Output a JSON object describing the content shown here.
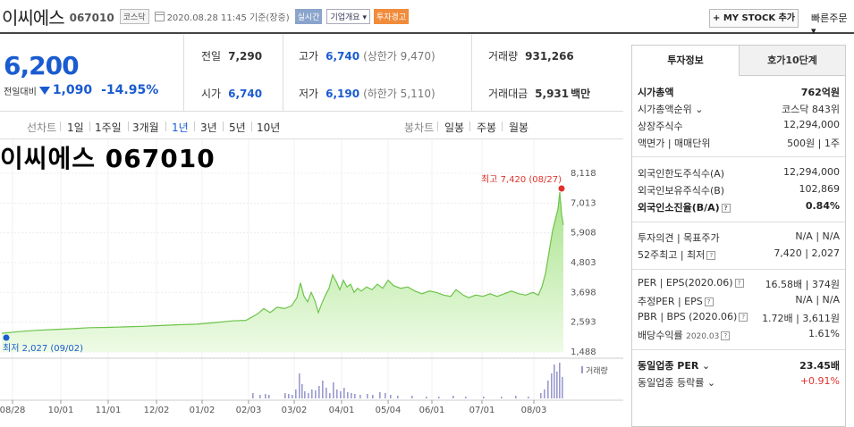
{
  "header": {
    "name": "이씨에스",
    "code": "067010",
    "market": "코스닥",
    "datetime": "2020.08.28 11:45",
    "status": "기준(장중)",
    "realtime": "실시간",
    "company_info": "기업개요",
    "warning": "투자경고",
    "mystock_label": "+ MY STOCK 추가",
    "quick_order": "빠른주문"
  },
  "price": {
    "current": "6,200",
    "change_label": "전일대비",
    "change": "1,090",
    "change_pct": "-14.95%",
    "prev_close_label": "전일",
    "prev_close": "7,290",
    "open_label": "시가",
    "open": "6,740",
    "high_label": "고가",
    "high": "6,740",
    "upper_limit_label": "(상한가 9,470)",
    "low_label": "저가",
    "low": "6,190",
    "lower_limit_label": "(하한가 5,110)",
    "volume_label": "거래량",
    "volume": "931,266",
    "amount_label": "거래대금",
    "amount": "5,931",
    "amount_unit": "백만"
  },
  "period": {
    "line_label": "선차트",
    "line_items": [
      "1일",
      "1주일",
      "3개월",
      "1년",
      "3년",
      "5년",
      "10년"
    ],
    "selected": "1년",
    "candle_label": "봉차트",
    "candle_items": [
      "일봉",
      "주봉",
      "월봉"
    ]
  },
  "chart_data": {
    "type": "area",
    "title": "이씨에스 067010",
    "y_ticks": [
      "8,118",
      "7,013",
      "5,908",
      "4,803",
      "3,698",
      "2,593",
      "1,488"
    ],
    "ylim": [
      1488,
      8118
    ],
    "x_ticks": [
      "08/28",
      "10/01",
      "11/01",
      "12/02",
      "01/02",
      "02/03",
      "03/02",
      "04/01",
      "05/04",
      "06/01",
      "07/01",
      "08/03"
    ],
    "high_label": "최고 7,420 (08/27)",
    "low_label": "최저 2,027 (09/02)",
    "volume_label": "거래량",
    "grid": true,
    "color": "#8fd870"
  },
  "invest": {
    "tab_active": "투자정보",
    "tab_inactive": "호가10단계",
    "market_cap_label": "시가총액",
    "market_cap": "762억원",
    "market_cap_rank_label": "시가총액순위",
    "market_cap_rank": "코스닥 843위",
    "shares_label": "상장주식수",
    "shares": "12,294,000",
    "par_label": "액면가 | 매매단위",
    "par": "500원 | 1주",
    "foreign_limit_label": "외국인한도주식수(A)",
    "foreign_limit": "12,294,000",
    "foreign_hold_label": "외국인보유주식수(B)",
    "foreign_hold": "102,869",
    "foreign_ratio_label": "외국인소진율(B/A)",
    "foreign_ratio": "0.84%",
    "opinion_label": "투자의견 | 목표주가",
    "opinion": "N/A | N/A",
    "w52_label": "52주최고 | 최저",
    "w52": "7,420 | 2,027",
    "per_label": "PER | EPS(2020.06)",
    "per": "16.58배 | 374원",
    "est_per_label": "추정PER | EPS",
    "est_per": "N/A | N/A",
    "pbr_label": "PBR | BPS (2020.06)",
    "pbr": "1.72배 | 3,611원",
    "div_label": "배당수익률",
    "div_date": "2020.03",
    "div": "1.61%",
    "ind_per_label": "동일업종 PER",
    "ind_per": "23.45배",
    "ind_rate_label": "동일업종 등락률",
    "ind_rate": "+0.91%"
  }
}
